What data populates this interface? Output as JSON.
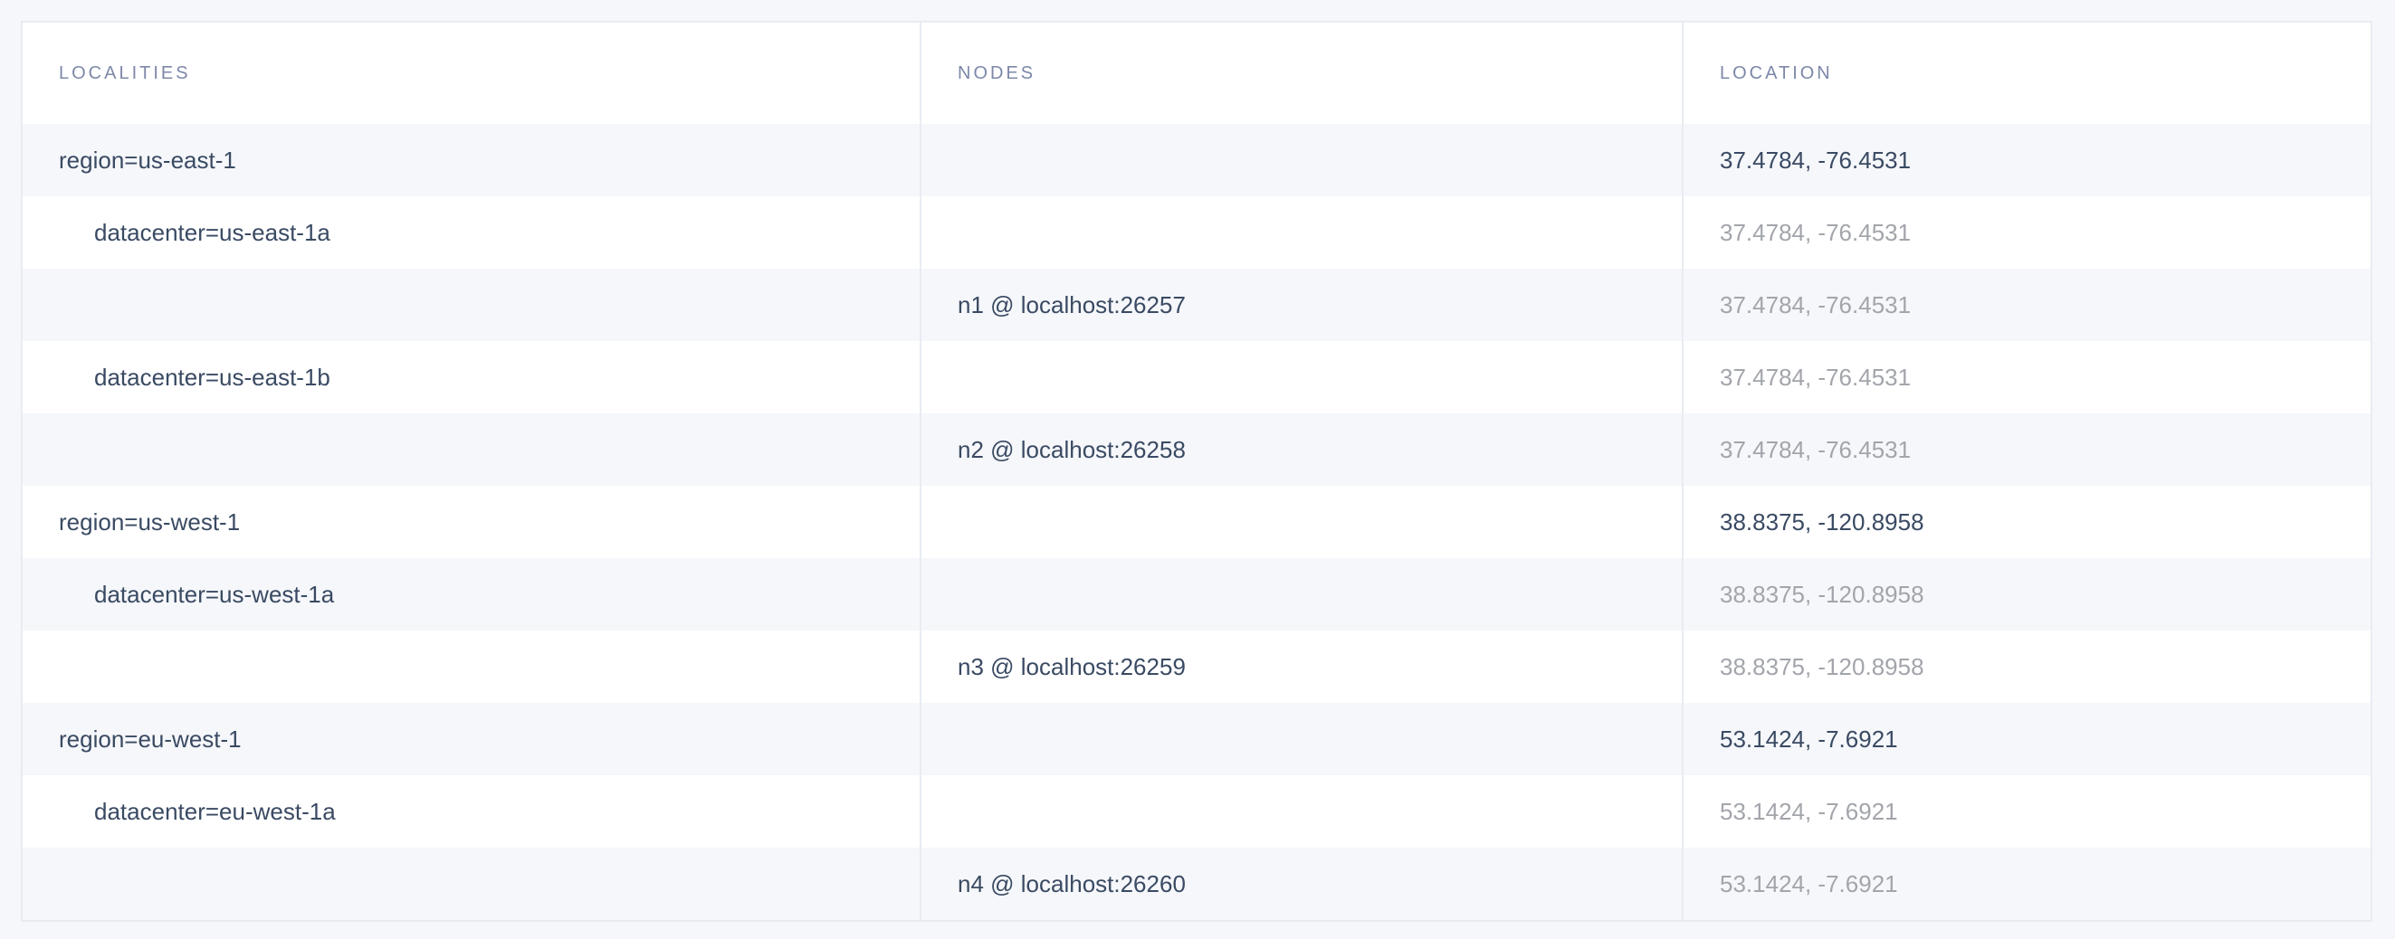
{
  "table": {
    "headers": [
      "LOCALITIES",
      "NODES",
      "LOCATION"
    ],
    "rows": [
      {
        "locality": "region=us-east-1",
        "level": 0,
        "node": "",
        "location": "37.4784, -76.4531",
        "location_muted": false
      },
      {
        "locality": "datacenter=us-east-1a",
        "level": 1,
        "node": "",
        "location": "37.4784, -76.4531",
        "location_muted": true
      },
      {
        "locality": "",
        "level": 2,
        "node": "n1 @ localhost:26257",
        "location": "37.4784, -76.4531",
        "location_muted": true
      },
      {
        "locality": "datacenter=us-east-1b",
        "level": 1,
        "node": "",
        "location": "37.4784, -76.4531",
        "location_muted": true
      },
      {
        "locality": "",
        "level": 2,
        "node": "n2 @ localhost:26258",
        "location": "37.4784, -76.4531",
        "location_muted": true
      },
      {
        "locality": "region=us-west-1",
        "level": 0,
        "node": "",
        "location": "38.8375, -120.8958",
        "location_muted": false
      },
      {
        "locality": "datacenter=us-west-1a",
        "level": 1,
        "node": "",
        "location": "38.8375, -120.8958",
        "location_muted": true
      },
      {
        "locality": "",
        "level": 2,
        "node": "n3 @ localhost:26259",
        "location": "38.8375, -120.8958",
        "location_muted": true
      },
      {
        "locality": "region=eu-west-1",
        "level": 0,
        "node": "",
        "location": "53.1424, -7.6921",
        "location_muted": false
      },
      {
        "locality": "datacenter=eu-west-1a",
        "level": 1,
        "node": "",
        "location": "53.1424, -7.6921",
        "location_muted": true
      },
      {
        "locality": "",
        "level": 2,
        "node": "n4 @ localhost:26260",
        "location": "53.1424, -7.6921",
        "location_muted": true
      }
    ]
  },
  "colors": {
    "text": "#3a4a63",
    "muted": "#a2a5ab",
    "header": "#7d88a8",
    "stripe": "#f5f7fa",
    "border": "#e8ecf2"
  }
}
